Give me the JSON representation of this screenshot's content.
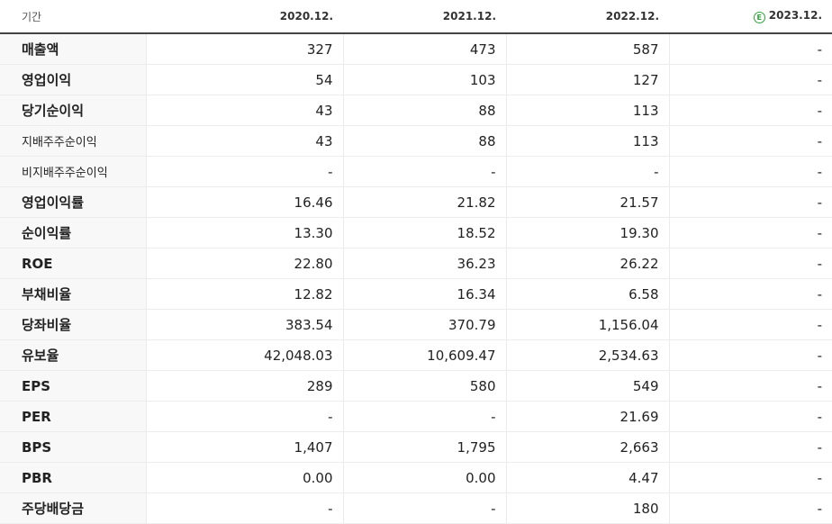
{
  "header": {
    "label": "기간",
    "periods": [
      "2020.12.",
      "2021.12.",
      "2022.12.",
      "2023.12."
    ],
    "estimate_icon_letter": "E",
    "estimate_icon_color": "#2fa13a"
  },
  "rows": [
    {
      "label": "매출액",
      "values": [
        "327",
        "473",
        "587",
        "-"
      ]
    },
    {
      "label": "영업이익",
      "values": [
        "54",
        "103",
        "127",
        "-"
      ]
    },
    {
      "label": "당기순이익",
      "values": [
        "43",
        "88",
        "113",
        "-"
      ]
    },
    {
      "label": "지배주주순이익",
      "values": [
        "43",
        "88",
        "113",
        "-"
      ]
    },
    {
      "label": "비지배주주순이익",
      "values": [
        "-",
        "-",
        "-",
        "-"
      ]
    },
    {
      "label": "영업이익률",
      "values": [
        "16.46",
        "21.82",
        "21.57",
        "-"
      ]
    },
    {
      "label": "순이익률",
      "values": [
        "13.30",
        "18.52",
        "19.30",
        "-"
      ]
    },
    {
      "label": "ROE",
      "values": [
        "22.80",
        "36.23",
        "26.22",
        "-"
      ]
    },
    {
      "label": "부채비율",
      "values": [
        "12.82",
        "16.34",
        "6.58",
        "-"
      ]
    },
    {
      "label": "당좌비율",
      "values": [
        "383.54",
        "370.79",
        "1,156.04",
        "-"
      ]
    },
    {
      "label": "유보율",
      "values": [
        "42,048.03",
        "10,609.47",
        "2,534.63",
        "-"
      ]
    },
    {
      "label": "EPS",
      "values": [
        "289",
        "580",
        "549",
        "-"
      ]
    },
    {
      "label": "PER",
      "values": [
        "-",
        "-",
        "21.69",
        "-"
      ]
    },
    {
      "label": "BPS",
      "values": [
        "1,407",
        "1,795",
        "2,663",
        "-"
      ]
    },
    {
      "label": "PBR",
      "values": [
        "0.00",
        "0.00",
        "4.47",
        "-"
      ]
    },
    {
      "label": "주당배당금",
      "values": [
        "-",
        "-",
        "180",
        "-"
      ]
    }
  ]
}
